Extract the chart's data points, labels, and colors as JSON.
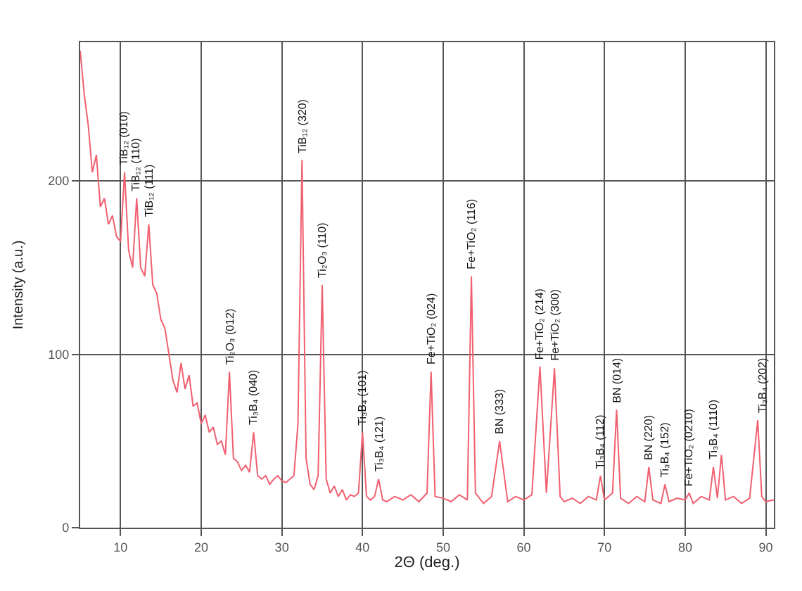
{
  "chart_data": {
    "type": "line",
    "xlabel": "2Θ (deg.)",
    "ylabel": "Intensity (a.u.)",
    "xlim": [
      5,
      91
    ],
    "ylim": [
      0,
      280
    ],
    "xticks": [
      10,
      20,
      30,
      40,
      50,
      60,
      70,
      80,
      90
    ],
    "yticks": [
      0,
      100,
      200
    ],
    "grid": true,
    "marker": "none",
    "line_style": "solid",
    "series": [
      {
        "color": "#f06070",
        "x": [
          5,
          5.5,
          6,
          6.5,
          7,
          7.5,
          8,
          8.5,
          9,
          9.5,
          10,
          10.5,
          11,
          11.5,
          12,
          12.5,
          13,
          13.5,
          14,
          14.5,
          15,
          15.5,
          16,
          16.5,
          17,
          17.5,
          18,
          18.5,
          19,
          19.5,
          20,
          20.5,
          21,
          21.5,
          22,
          22.5,
          23,
          23.5,
          24,
          24.5,
          25,
          25.5,
          26,
          26.5,
          27,
          27.5,
          28,
          28.5,
          29,
          29.5,
          30,
          30.5,
          31,
          31.5,
          32,
          32.5,
          33,
          33.5,
          34,
          34.5,
          35,
          35.5,
          36,
          36.5,
          37,
          37.5,
          38,
          38.5,
          39,
          39.5,
          40,
          40.5,
          41,
          41.5,
          42,
          42.5,
          43,
          44,
          45,
          46,
          47,
          48,
          48.5,
          49,
          50,
          51,
          52,
          53,
          53.5,
          54,
          55,
          56,
          57,
          58,
          59,
          60,
          61,
          62,
          62.8,
          63.8,
          64.5,
          65,
          66,
          67,
          68,
          69,
          69.5,
          70,
          71,
          71.5,
          72,
          73,
          74,
          75,
          75.5,
          76,
          77,
          77.5,
          78,
          79,
          80,
          80.5,
          81,
          82,
          83,
          83.5,
          84,
          84.5,
          85,
          86,
          87,
          88,
          89,
          89.5,
          90,
          91
        ],
        "values": [
          275,
          250,
          232,
          205,
          215,
          185,
          190,
          175,
          180,
          168,
          165,
          205,
          160,
          150,
          190,
          150,
          145,
          175,
          140,
          135,
          120,
          115,
          100,
          85,
          78,
          95,
          80,
          88,
          70,
          72,
          60,
          65,
          55,
          58,
          48,
          50,
          42,
          90,
          40,
          38,
          33,
          36,
          32,
          55,
          30,
          28,
          30,
          25,
          28,
          30,
          27,
          26,
          28,
          30,
          60,
          212,
          40,
          25,
          22,
          30,
          140,
          28,
          20,
          24,
          18,
          22,
          16,
          19,
          18,
          20,
          55,
          18,
          16,
          18,
          28,
          16,
          15,
          18,
          16,
          19,
          15,
          20,
          90,
          18,
          17,
          15,
          19,
          16,
          145,
          20,
          14,
          18,
          50,
          15,
          18,
          16,
          19,
          93,
          20,
          92,
          18,
          15,
          17,
          14,
          18,
          16,
          30,
          16,
          20,
          68,
          17,
          14,
          18,
          15,
          35,
          16,
          14,
          25,
          15,
          17,
          16,
          20,
          14,
          18,
          16,
          35,
          17,
          42,
          16,
          18,
          14,
          17,
          62,
          18,
          15,
          16
        ]
      }
    ],
    "annotations": [
      {
        "text": "TiB₁₂ (010)",
        "x": 10.5,
        "y": 205
      },
      {
        "text": "TiB₁₂ (110)",
        "x": 12,
        "y": 190
      },
      {
        "text": "TiB₁₂ (111)",
        "x": 13.5,
        "y": 175
      },
      {
        "text": "Ti₂O₃ (012)",
        "x": 23.5,
        "y": 90
      },
      {
        "text": "Ti₃B₄ (040)",
        "x": 26.5,
        "y": 55
      },
      {
        "text": "TiB₁₂ (320)",
        "x": 32.5,
        "y": 212
      },
      {
        "text": "Ti₂O₃ (110)",
        "x": 35,
        "y": 140
      },
      {
        "text": "Ti₃B₄ (101)",
        "x": 40,
        "y": 55
      },
      {
        "text": "Ti₃B₄ (121)",
        "x": 42,
        "y": 28
      },
      {
        "text": "Fe+TiO₂ (024)",
        "x": 48.5,
        "y": 90
      },
      {
        "text": "Fe+TiO₂ (116)",
        "x": 53.5,
        "y": 145
      },
      {
        "text": "BN (333)",
        "x": 57,
        "y": 50
      },
      {
        "text": "Fe+TiO₂ (214)",
        "x": 62,
        "y": 93
      },
      {
        "text": "Fe+TiO₂ (300)",
        "x": 63.8,
        "y": 92
      },
      {
        "text": "Ti₃B₄ (112)",
        "x": 69.5,
        "y": 30
      },
      {
        "text": "BN (014)",
        "x": 71.5,
        "y": 68
      },
      {
        "text": "BN (220)",
        "x": 75.5,
        "y": 35
      },
      {
        "text": "Ti₃B₄ (152)",
        "x": 77.5,
        "y": 25
      },
      {
        "text": "Fe+TiO₂ (0210)",
        "x": 80.5,
        "y": 20
      },
      {
        "text": "Ti₃B₄ (1110)",
        "x": 83.5,
        "y": 35
      },
      {
        "text": "Ti₃B₄ (202)",
        "x": 89.5,
        "y": 62
      }
    ]
  }
}
